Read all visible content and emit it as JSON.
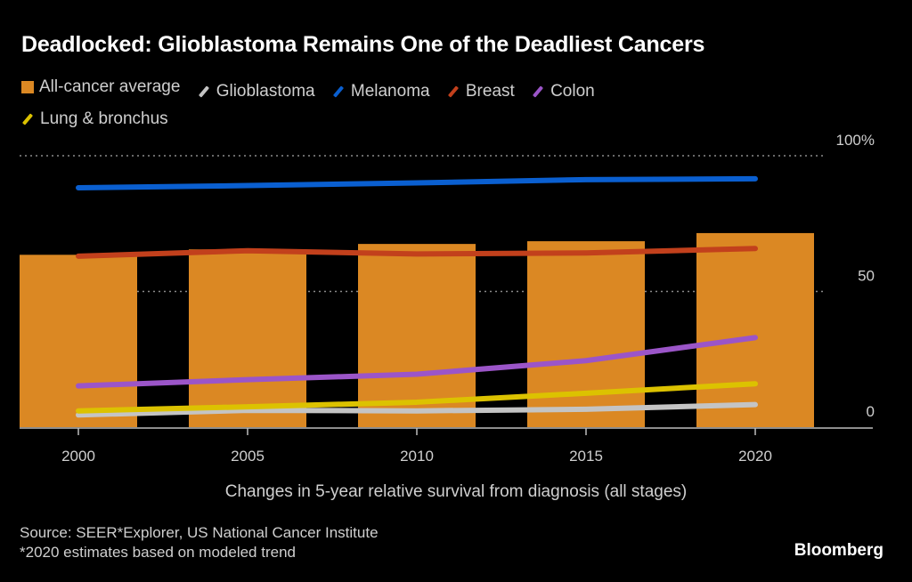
{
  "chart_data": {
    "type": "bar+line",
    "title": "Deadlocked: Glioblastoma Remains One of the Deadliest Cancers",
    "xlabel": "Changes in 5-year relative survival from diagnosis (all stages)",
    "ylabel": "",
    "x": [
      2000,
      2005,
      2010,
      2015,
      2020
    ],
    "x_tick_labels": [
      "2000",
      "2005",
      "2010",
      "2015",
      "2020"
    ],
    "ylim": [
      0,
      100
    ],
    "y_ticks": [
      0,
      50,
      100
    ],
    "y_tick_labels": [
      "0",
      "50",
      "100%"
    ],
    "y_axis_position": "right",
    "grid": "dotted horizontal at 50 and 100",
    "legend_position": "top-left",
    "bar_series": {
      "name": "All-cancer average",
      "color": "#db8823",
      "values": [
        63.5,
        65.5,
        67.5,
        68.5,
        71.5
      ]
    },
    "series": [
      {
        "name": "Glioblastoma",
        "color": "#c4c4c4",
        "values": [
          4.5,
          6.2,
          6.0,
          6.6,
          8.3
        ]
      },
      {
        "name": "Melanoma",
        "color": "#0a5fd0",
        "values": [
          88.2,
          89.0,
          90.0,
          91.2,
          91.5
        ]
      },
      {
        "name": "Breast",
        "color": "#c2401c",
        "values": [
          63.0,
          65.0,
          63.8,
          64.2,
          65.8
        ]
      },
      {
        "name": "Colon",
        "color": "#9b55c8",
        "values": [
          15.2,
          17.5,
          19.5,
          24.5,
          33.0
        ]
      },
      {
        "name": "Lung & bronchus",
        "color": "#dcc200",
        "values": [
          6.0,
          7.5,
          9.2,
          12.5,
          16.0
        ]
      }
    ]
  },
  "legend": [
    {
      "label": "All-cancer average",
      "kind": "box",
      "color": "#db8823"
    },
    {
      "label": "Glioblastoma",
      "kind": "line",
      "color": "#c4c4c4"
    },
    {
      "label": "Melanoma",
      "kind": "line",
      "color": "#0a5fd0"
    },
    {
      "label": "Breast",
      "kind": "line",
      "color": "#c2401c"
    },
    {
      "label": "Colon",
      "kind": "line",
      "color": "#9b55c8"
    },
    {
      "label": "Lung & bronchus",
      "kind": "line",
      "color": "#dcc200"
    }
  ],
  "footer": {
    "source": "Source: SEER*Explorer, US National Cancer Institute",
    "note": "*2020 estimates based on modeled trend",
    "brand": "Bloomberg"
  }
}
